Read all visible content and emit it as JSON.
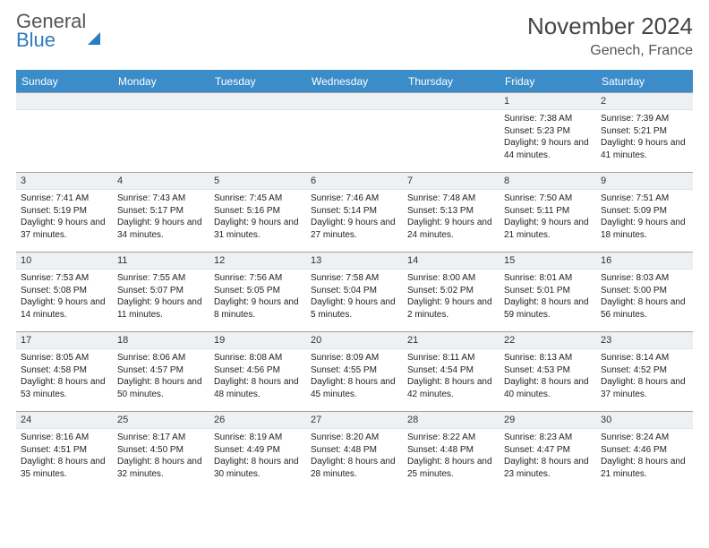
{
  "brand": {
    "part1": "General",
    "part2": "Blue"
  },
  "title": "November 2024",
  "location": "Genech, France",
  "weekdays": [
    "Sunday",
    "Monday",
    "Tuesday",
    "Wednesday",
    "Thursday",
    "Friday",
    "Saturday"
  ],
  "colors": {
    "accent": "#3b8cc9",
    "row_bg": "#eef0f2"
  },
  "days": [
    null,
    null,
    null,
    null,
    null,
    {
      "n": "1",
      "sunrise": "Sunrise: 7:38 AM",
      "sunset": "Sunset: 5:23 PM",
      "daylight": "Daylight: 9 hours and 44 minutes."
    },
    {
      "n": "2",
      "sunrise": "Sunrise: 7:39 AM",
      "sunset": "Sunset: 5:21 PM",
      "daylight": "Daylight: 9 hours and 41 minutes."
    },
    {
      "n": "3",
      "sunrise": "Sunrise: 7:41 AM",
      "sunset": "Sunset: 5:19 PM",
      "daylight": "Daylight: 9 hours and 37 minutes."
    },
    {
      "n": "4",
      "sunrise": "Sunrise: 7:43 AM",
      "sunset": "Sunset: 5:17 PM",
      "daylight": "Daylight: 9 hours and 34 minutes."
    },
    {
      "n": "5",
      "sunrise": "Sunrise: 7:45 AM",
      "sunset": "Sunset: 5:16 PM",
      "daylight": "Daylight: 9 hours and 31 minutes."
    },
    {
      "n": "6",
      "sunrise": "Sunrise: 7:46 AM",
      "sunset": "Sunset: 5:14 PM",
      "daylight": "Daylight: 9 hours and 27 minutes."
    },
    {
      "n": "7",
      "sunrise": "Sunrise: 7:48 AM",
      "sunset": "Sunset: 5:13 PM",
      "daylight": "Daylight: 9 hours and 24 minutes."
    },
    {
      "n": "8",
      "sunrise": "Sunrise: 7:50 AM",
      "sunset": "Sunset: 5:11 PM",
      "daylight": "Daylight: 9 hours and 21 minutes."
    },
    {
      "n": "9",
      "sunrise": "Sunrise: 7:51 AM",
      "sunset": "Sunset: 5:09 PM",
      "daylight": "Daylight: 9 hours and 18 minutes."
    },
    {
      "n": "10",
      "sunrise": "Sunrise: 7:53 AM",
      "sunset": "Sunset: 5:08 PM",
      "daylight": "Daylight: 9 hours and 14 minutes."
    },
    {
      "n": "11",
      "sunrise": "Sunrise: 7:55 AM",
      "sunset": "Sunset: 5:07 PM",
      "daylight": "Daylight: 9 hours and 11 minutes."
    },
    {
      "n": "12",
      "sunrise": "Sunrise: 7:56 AM",
      "sunset": "Sunset: 5:05 PM",
      "daylight": "Daylight: 9 hours and 8 minutes."
    },
    {
      "n": "13",
      "sunrise": "Sunrise: 7:58 AM",
      "sunset": "Sunset: 5:04 PM",
      "daylight": "Daylight: 9 hours and 5 minutes."
    },
    {
      "n": "14",
      "sunrise": "Sunrise: 8:00 AM",
      "sunset": "Sunset: 5:02 PM",
      "daylight": "Daylight: 9 hours and 2 minutes."
    },
    {
      "n": "15",
      "sunrise": "Sunrise: 8:01 AM",
      "sunset": "Sunset: 5:01 PM",
      "daylight": "Daylight: 8 hours and 59 minutes."
    },
    {
      "n": "16",
      "sunrise": "Sunrise: 8:03 AM",
      "sunset": "Sunset: 5:00 PM",
      "daylight": "Daylight: 8 hours and 56 minutes."
    },
    {
      "n": "17",
      "sunrise": "Sunrise: 8:05 AM",
      "sunset": "Sunset: 4:58 PM",
      "daylight": "Daylight: 8 hours and 53 minutes."
    },
    {
      "n": "18",
      "sunrise": "Sunrise: 8:06 AM",
      "sunset": "Sunset: 4:57 PM",
      "daylight": "Daylight: 8 hours and 50 minutes."
    },
    {
      "n": "19",
      "sunrise": "Sunrise: 8:08 AM",
      "sunset": "Sunset: 4:56 PM",
      "daylight": "Daylight: 8 hours and 48 minutes."
    },
    {
      "n": "20",
      "sunrise": "Sunrise: 8:09 AM",
      "sunset": "Sunset: 4:55 PM",
      "daylight": "Daylight: 8 hours and 45 minutes."
    },
    {
      "n": "21",
      "sunrise": "Sunrise: 8:11 AM",
      "sunset": "Sunset: 4:54 PM",
      "daylight": "Daylight: 8 hours and 42 minutes."
    },
    {
      "n": "22",
      "sunrise": "Sunrise: 8:13 AM",
      "sunset": "Sunset: 4:53 PM",
      "daylight": "Daylight: 8 hours and 40 minutes."
    },
    {
      "n": "23",
      "sunrise": "Sunrise: 8:14 AM",
      "sunset": "Sunset: 4:52 PM",
      "daylight": "Daylight: 8 hours and 37 minutes."
    },
    {
      "n": "24",
      "sunrise": "Sunrise: 8:16 AM",
      "sunset": "Sunset: 4:51 PM",
      "daylight": "Daylight: 8 hours and 35 minutes."
    },
    {
      "n": "25",
      "sunrise": "Sunrise: 8:17 AM",
      "sunset": "Sunset: 4:50 PM",
      "daylight": "Daylight: 8 hours and 32 minutes."
    },
    {
      "n": "26",
      "sunrise": "Sunrise: 8:19 AM",
      "sunset": "Sunset: 4:49 PM",
      "daylight": "Daylight: 8 hours and 30 minutes."
    },
    {
      "n": "27",
      "sunrise": "Sunrise: 8:20 AM",
      "sunset": "Sunset: 4:48 PM",
      "daylight": "Daylight: 8 hours and 28 minutes."
    },
    {
      "n": "28",
      "sunrise": "Sunrise: 8:22 AM",
      "sunset": "Sunset: 4:48 PM",
      "daylight": "Daylight: 8 hours and 25 minutes."
    },
    {
      "n": "29",
      "sunrise": "Sunrise: 8:23 AM",
      "sunset": "Sunset: 4:47 PM",
      "daylight": "Daylight: 8 hours and 23 minutes."
    },
    {
      "n": "30",
      "sunrise": "Sunrise: 8:24 AM",
      "sunset": "Sunset: 4:46 PM",
      "daylight": "Daylight: 8 hours and 21 minutes."
    }
  ]
}
